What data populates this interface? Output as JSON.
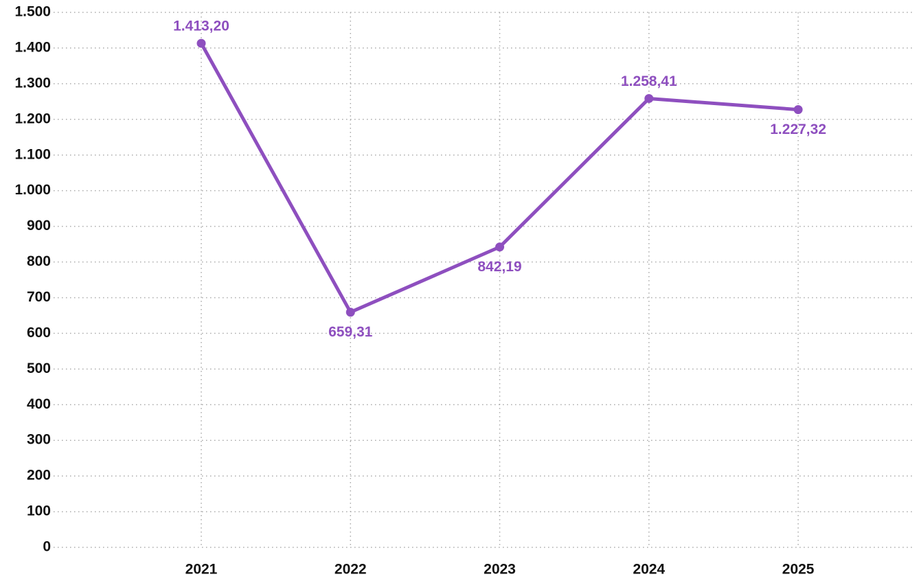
{
  "chart_data": {
    "type": "line",
    "categories": [
      "2021",
      "2022",
      "2023",
      "2024",
      "2025"
    ],
    "series": [
      {
        "color": "#8e4fbf",
        "values": [
          1413.2,
          659.31,
          842.19,
          1258.41,
          1227.32
        ],
        "value_labels": [
          "1.413,20",
          "659,31",
          "842,19",
          "1.258,41",
          "1.227,32"
        ]
      }
    ],
    "ylim": [
      0,
      1500
    ],
    "yticks": [
      0,
      100,
      200,
      300,
      400,
      500,
      600,
      700,
      800,
      900,
      {
        "value": 1000,
        "label": "1.000"
      },
      {
        "value": 1100,
        "label": "1.100"
      },
      {
        "value": 1200,
        "label": "1.200"
      },
      {
        "value": 1300,
        "label": "1.300"
      },
      {
        "value": 1400,
        "label": "1.400"
      },
      {
        "value": 1500,
        "label": "1.500"
      }
    ],
    "grid": true
  }
}
